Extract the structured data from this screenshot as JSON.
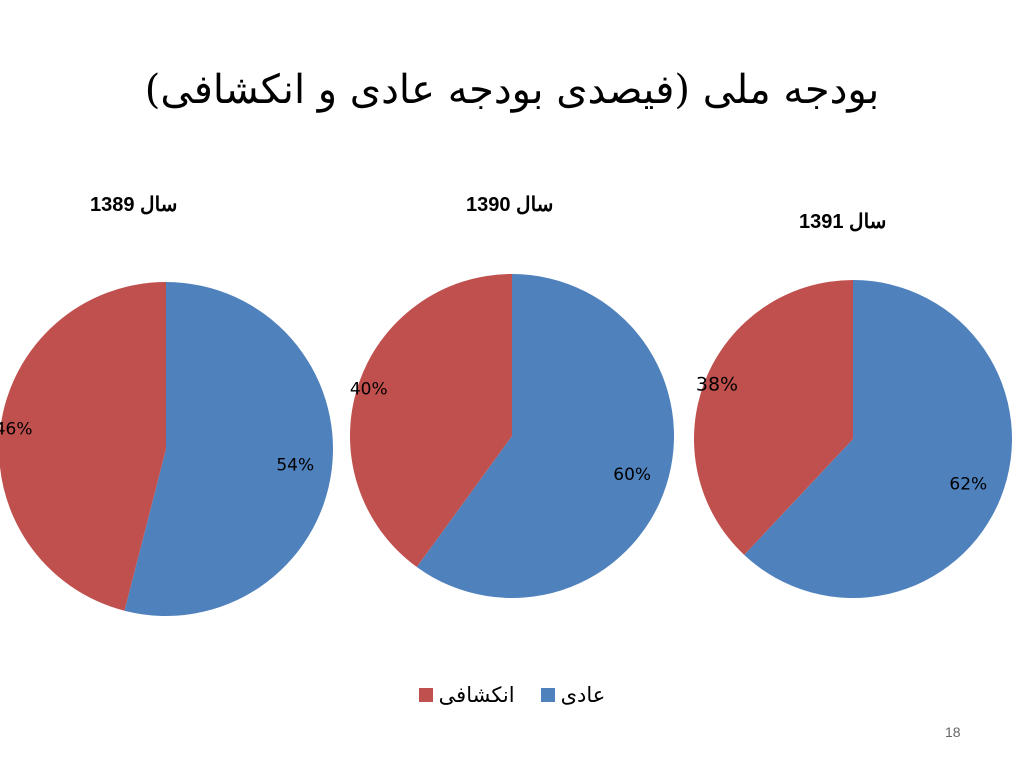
{
  "slide": {
    "title": "بودجه ملی (فیصدی بودجه عادی و انکشافی)",
    "page_number": "18"
  },
  "colors": {
    "regular": "#4F81BD",
    "development": "#C0504D"
  },
  "legend": [
    {
      "label": "عادی",
      "color": "#4F81BD"
    },
    {
      "label": "انکشافی",
      "color": "#C0504D"
    }
  ],
  "chart_data": [
    {
      "type": "pie",
      "title": "سال 1389",
      "categories": [
        "عادی",
        "انکشافی"
      ],
      "values": [
        54,
        46
      ],
      "labels": [
        "54%",
        "46%"
      ]
    },
    {
      "type": "pie",
      "title": "سال 1390",
      "categories": [
        "عادی",
        "انکشافی"
      ],
      "values": [
        60,
        40
      ],
      "labels": [
        "60%",
        "40%"
      ]
    },
    {
      "type": "pie",
      "title": "سال 1391",
      "categories": [
        "عادی",
        "انکشافی"
      ],
      "values": [
        62,
        38
      ],
      "labels": [
        "62%",
        "38%"
      ]
    }
  ]
}
